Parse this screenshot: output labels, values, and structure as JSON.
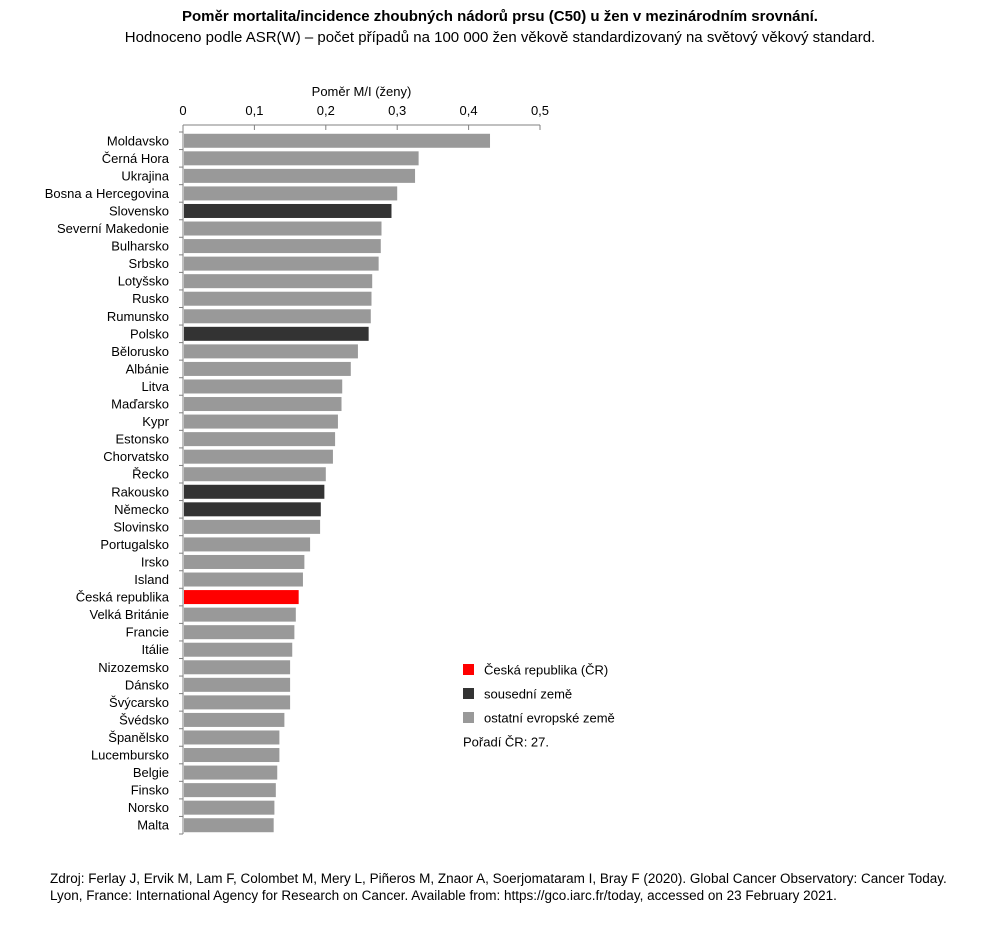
{
  "chart_data": {
    "type": "bar",
    "orientation": "horizontal",
    "title": "Poměr mortalita/incidence zhoubných nádorů prsu (C50) u žen v mezinárodním srovnání.",
    "subtitle": "Hodnoceno podle ASR(W) – počet případů na 100 000 žen věkově standardizovaný na světový věkový standard.",
    "xlabel": "Poměr M/I (ženy)",
    "xlim": [
      0,
      0.5
    ],
    "xticks": [
      "0",
      "0,1",
      "0,2",
      "0,3",
      "0,4",
      "0,5"
    ],
    "axis_position": "top",
    "categories": [
      "Moldavsko",
      "Černá Hora",
      "Ukrajina",
      "Bosna a Hercegovina",
      "Slovensko",
      "Severní Makedonie",
      "Bulharsko",
      "Srbsko",
      "Lotyšsko",
      "Rusko",
      "Rumunsko",
      "Polsko",
      "Bělorusko",
      "Albánie",
      "Litva",
      "Maďarsko",
      "Kypr",
      "Estonsko",
      "Chorvatsko",
      "Řecko",
      "Rakousko",
      "Německo",
      "Slovinsko",
      "Portugalsko",
      "Irsko",
      "Island",
      "Česká republika",
      "Velká Británie",
      "Francie",
      "Itálie",
      "Nizozemsko",
      "Dánsko",
      "Švýcarsko",
      "Švédsko",
      "Španělsko",
      "Lucembursko",
      "Belgie",
      "Finsko",
      "Norsko",
      "Malta"
    ],
    "values": [
      0.43,
      0.33,
      0.325,
      0.3,
      0.292,
      0.278,
      0.277,
      0.274,
      0.265,
      0.264,
      0.263,
      0.26,
      0.245,
      0.235,
      0.223,
      0.222,
      0.217,
      0.213,
      0.21,
      0.2,
      0.198,
      0.193,
      0.192,
      0.178,
      0.17,
      0.168,
      0.162,
      0.158,
      0.156,
      0.153,
      0.15,
      0.15,
      0.15,
      0.142,
      0.135,
      0.135,
      0.132,
      0.13,
      0.128,
      0.127
    ],
    "groups": [
      "other",
      "other",
      "other",
      "other",
      "neighbor",
      "other",
      "other",
      "other",
      "other",
      "other",
      "other",
      "neighbor",
      "other",
      "other",
      "other",
      "other",
      "other",
      "other",
      "other",
      "other",
      "neighbor",
      "neighbor",
      "other",
      "other",
      "other",
      "other",
      "cz",
      "other",
      "other",
      "other",
      "other",
      "other",
      "other",
      "other",
      "other",
      "other",
      "other",
      "other",
      "other",
      "other"
    ],
    "colors": {
      "cz": "#ff0000",
      "neighbor": "#333333",
      "other": "#999999"
    },
    "legend": {
      "placement": "bottom-right",
      "items": [
        {
          "label": "Česká republika (ČR)",
          "group": "cz"
        },
        {
          "label": "sousední země",
          "group": "neighbor"
        },
        {
          "label": "ostatní evropské země",
          "group": "other"
        }
      ],
      "note": "Pořadí ČR: 27."
    },
    "grid": false
  },
  "source": "Zdroj: Ferlay J, Ervik M, Lam F, Colombet M, Mery L, Piñeros M, Znaor A, Soerjomataram I, Bray F (2020). Global Cancer Observatory: Cancer Today. Lyon, France: International Agency for Research on Cancer. Available from: https://gco.iarc.fr/today, accessed on 23 February 2021."
}
